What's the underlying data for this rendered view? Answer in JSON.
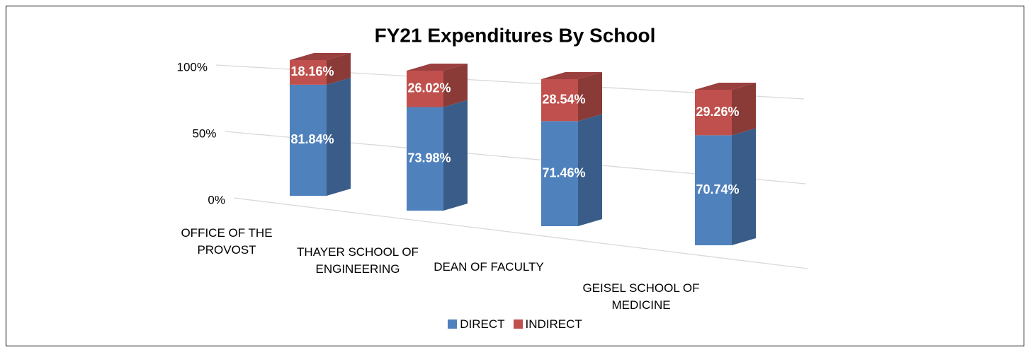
{
  "chart_data": {
    "type": "bar3d_stacked",
    "title": "FY21 Expenditures By School",
    "categories": [
      "OFFICE OF THE PROVOST",
      "THAYER SCHOOL OF ENGINEERING",
      "DEAN OF FACULTY",
      "GEISEL SCHOOL OF MEDICINE"
    ],
    "series": [
      {
        "name": "DIRECT",
        "color": "#4f81bd",
        "values": [
          81.84,
          73.98,
          71.46,
          70.74
        ],
        "value_labels": [
          "81.84%",
          "73.98%",
          "71.46%",
          "70.74%"
        ]
      },
      {
        "name": "INDIRECT",
        "color": "#c0504d",
        "values": [
          18.16,
          26.02,
          28.54,
          29.26
        ],
        "value_labels": [
          "18.16%",
          "26.02%",
          "28.54%",
          "29.26%"
        ]
      }
    ],
    "ylim": [
      0,
      100
    ],
    "yticks": [
      {
        "value": 0,
        "label": "0%"
      },
      {
        "value": 50,
        "label": "50%"
      },
      {
        "value": 100,
        "label": "100%"
      }
    ],
    "grid": true,
    "legend": "bottom"
  }
}
